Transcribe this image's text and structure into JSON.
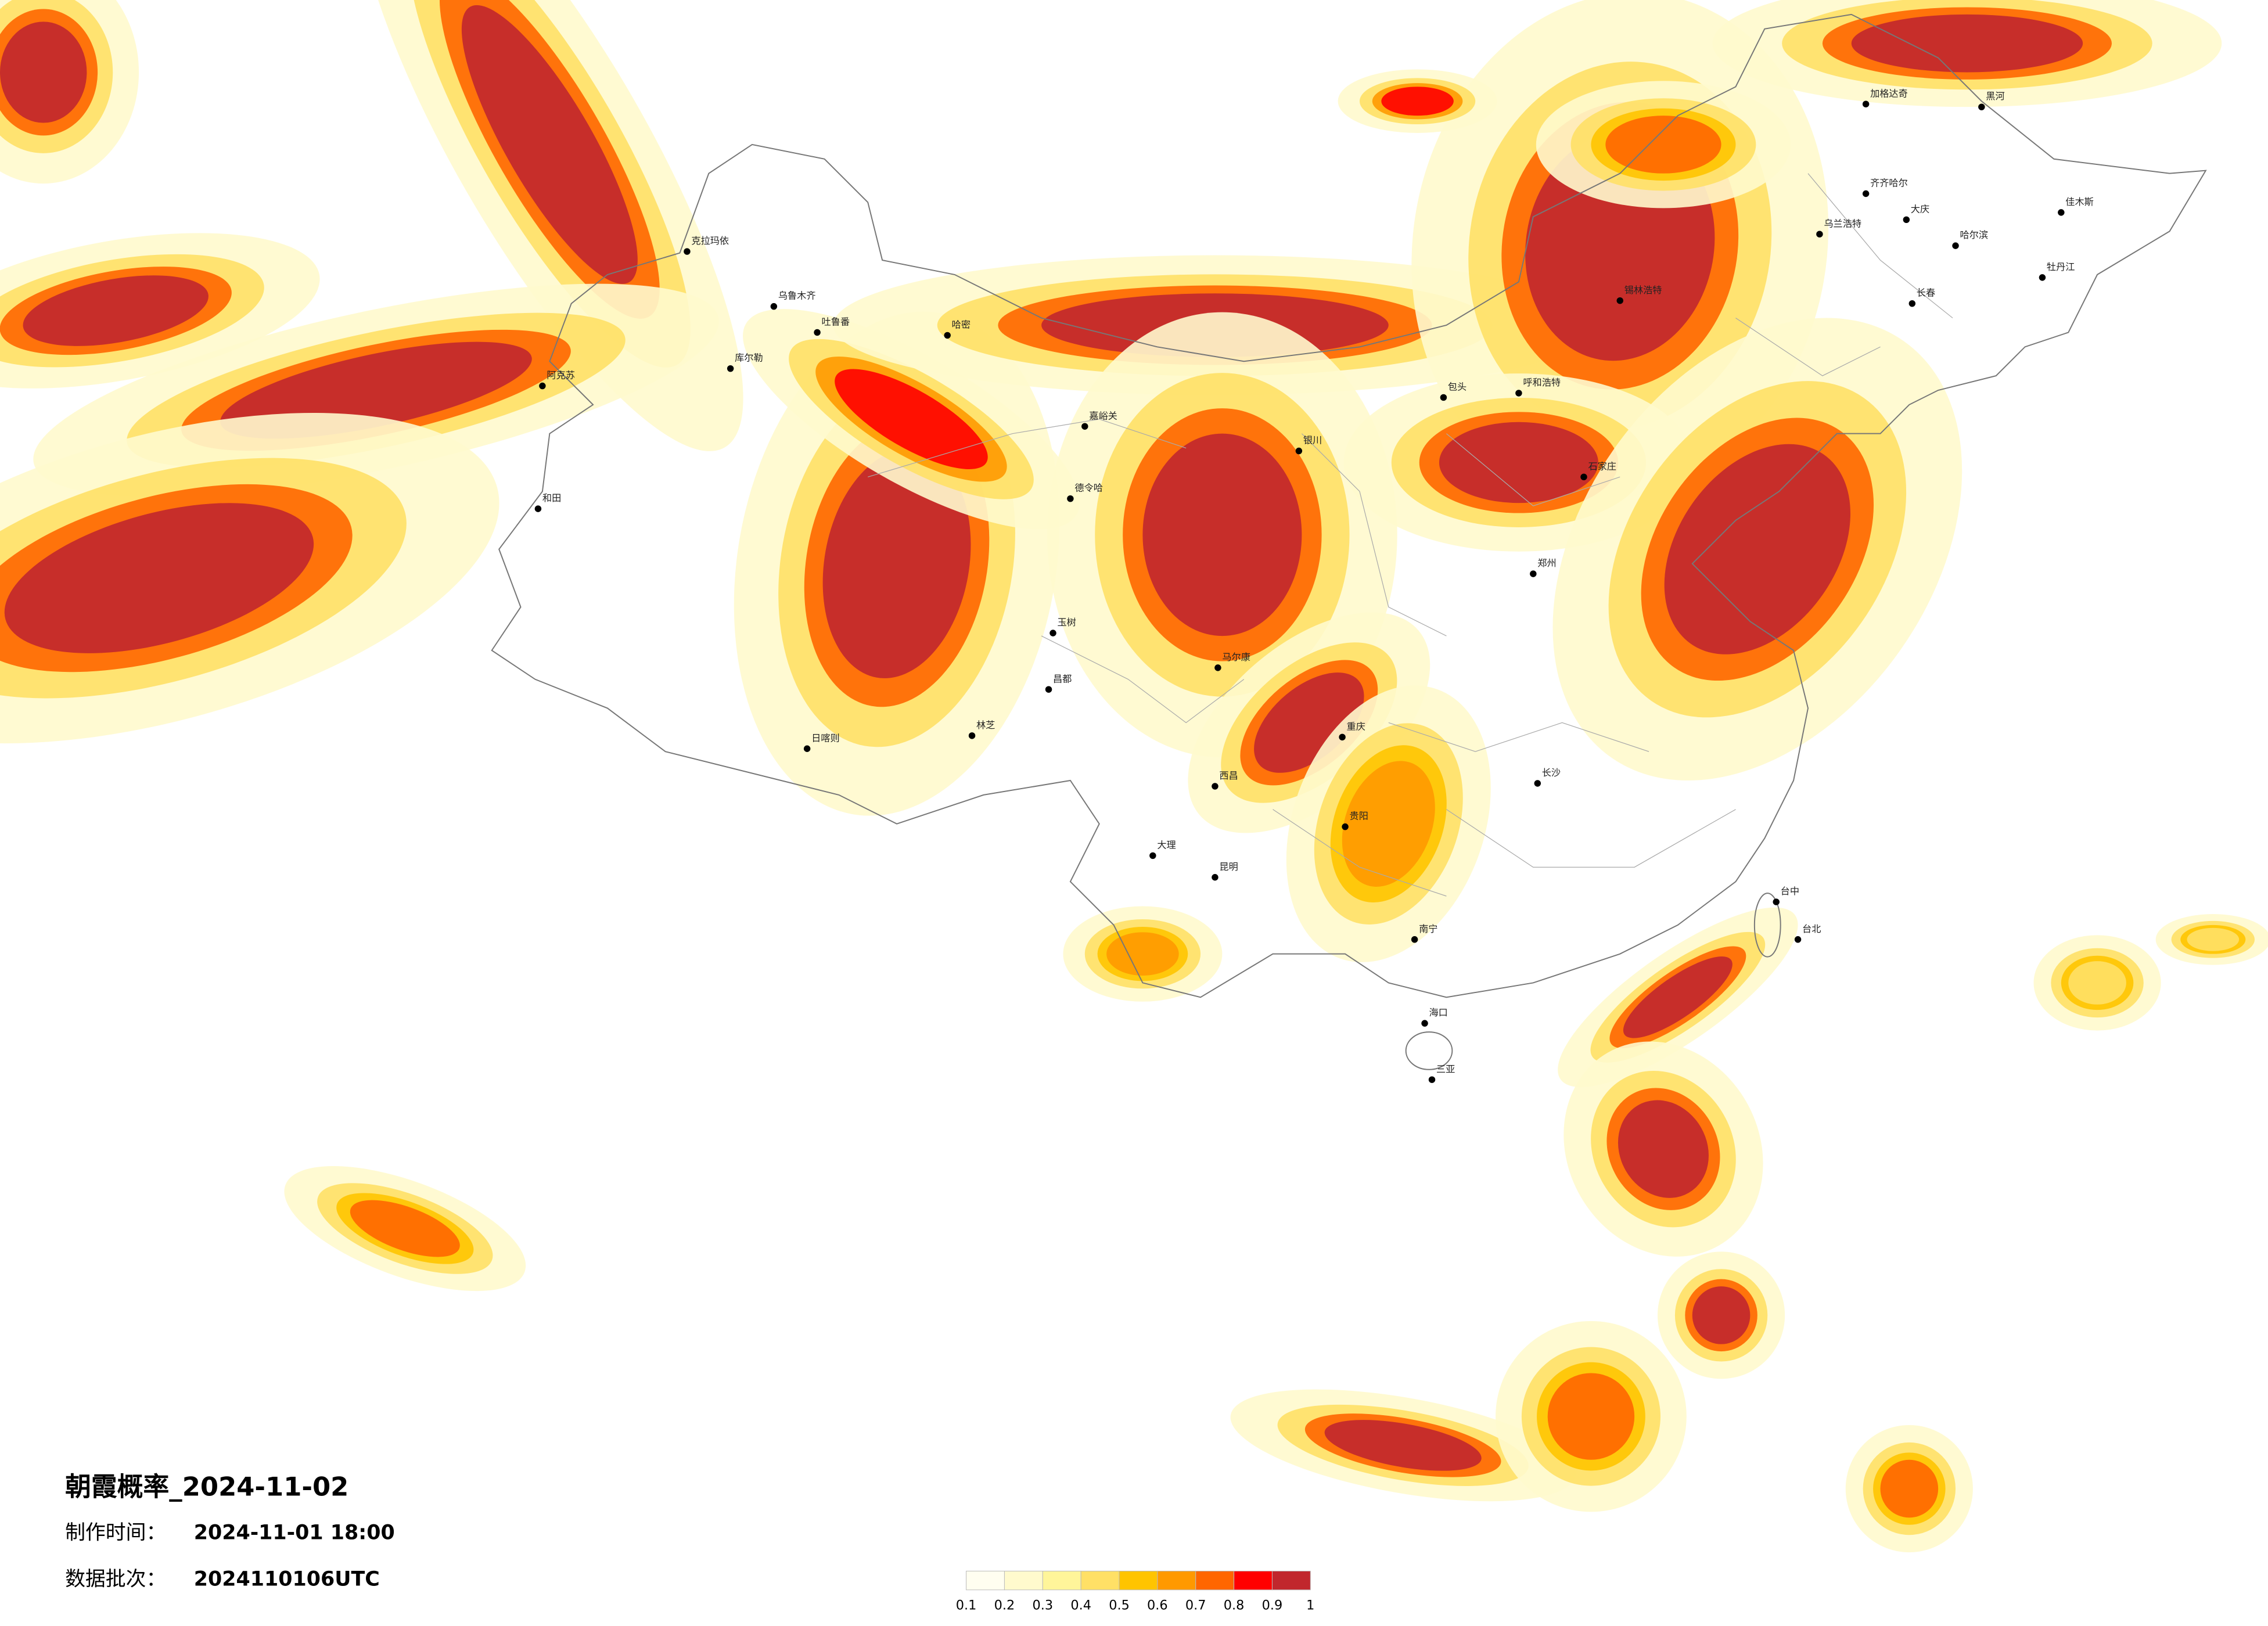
{
  "title": "朝霞概率_2024-11-02",
  "production_time": {
    "label": "制作时间：",
    "value": "2024-11-01 18:00"
  },
  "batch": {
    "label": "数据批次：",
    "value": "2024110106UTC"
  },
  "colorbar": {
    "ticks": [
      0.1,
      0.2,
      0.3,
      0.4,
      0.5,
      0.6,
      0.7,
      0.8,
      0.9,
      1
    ],
    "colors": [
      "#fffef0",
      "#fffacd",
      "#fff59a",
      "#ffe066",
      "#ffc400",
      "#ff9900",
      "#ff6600",
      "#ff0000",
      "#c1272d"
    ]
  },
  "cities": [
    "克拉玛依",
    "乌鲁木齐",
    "吐鲁番",
    "哈密",
    "库尔勒",
    "阿克苏",
    "和田",
    "德令哈",
    "嘉峪关",
    "日喀则",
    "林芝",
    "昌都",
    "玉树",
    "马尔康",
    "重庆",
    "西昌",
    "大理",
    "昆明",
    "南宁",
    "海口",
    "三亚",
    "台中",
    "台北",
    "石家庄",
    "郑州",
    "长沙",
    "贵阳",
    "呼和浩特",
    "包头",
    "银川",
    "哈尔滨",
    "齐齐哈尔",
    "长春",
    "大庆",
    "牡丹江",
    "佳木斯",
    "黑河",
    "加格达奇",
    "乌兰浩特",
    "锡林浩特"
  ]
}
